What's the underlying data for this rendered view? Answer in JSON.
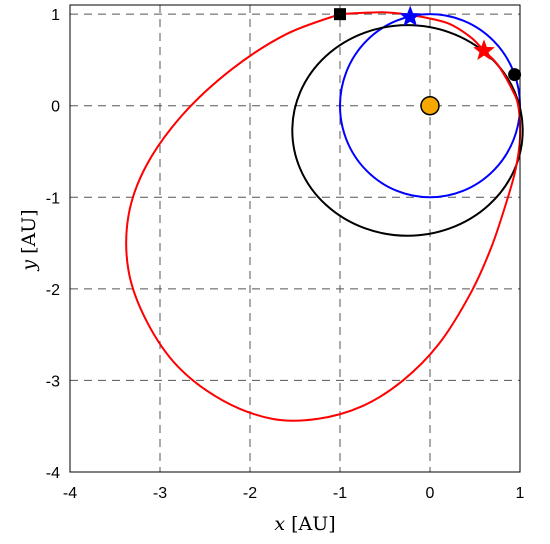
{
  "chart_data": {
    "type": "line",
    "title": "",
    "xlabel": {
      "var": "x",
      "unit": "[AU]"
    },
    "ylabel": {
      "var": "y",
      "unit": "[AU]"
    },
    "xlim": [
      -4,
      1.0
    ],
    "ylim": [
      -4,
      1.1
    ],
    "xticks": [
      "-4",
      "-3",
      "-2",
      "-1",
      "0",
      "1"
    ],
    "yticks": [
      "1",
      "0",
      "-1",
      "-2",
      "-3",
      "-4"
    ],
    "grid": "dashed",
    "series": [
      {
        "color": "#0000ff",
        "kind": "ellipse",
        "center": [
          0,
          0
        ],
        "rx": 1.0,
        "ry": 1.0,
        "marker": {
          "shape": "star",
          "x": -0.22,
          "y": 0.97
        }
      },
      {
        "color": "#000000",
        "kind": "ellipse",
        "center": [
          -0.25,
          -0.27
        ],
        "rx": 1.28,
        "ry": 1.15,
        "markers": [
          {
            "shape": "square",
            "x": -1.0,
            "y": 1.0
          },
          {
            "shape": "circle",
            "x": 0.94,
            "y": 0.34
          }
        ]
      },
      {
        "color": "#ff0000",
        "kind": "curve",
        "points": [
          [
            -1.0,
            1.0
          ],
          [
            -0.5,
            1.02
          ],
          [
            -0.15,
            0.98
          ],
          [
            0.2,
            0.9
          ],
          [
            0.45,
            0.75
          ],
          [
            0.6,
            0.6
          ],
          [
            0.75,
            0.45
          ],
          [
            0.9,
            0.2
          ],
          [
            0.98,
            0.0
          ],
          [
            1.0,
            -0.35
          ],
          [
            0.95,
            -0.7
          ],
          [
            0.85,
            -1.05
          ],
          [
            0.68,
            -1.55
          ],
          [
            0.45,
            -2.05
          ],
          [
            0.1,
            -2.6
          ],
          [
            -0.3,
            -3.0
          ],
          [
            -0.75,
            -3.28
          ],
          [
            -1.25,
            -3.42
          ],
          [
            -1.75,
            -3.42
          ],
          [
            -2.3,
            -3.22
          ],
          [
            -2.8,
            -2.85
          ],
          [
            -3.15,
            -2.35
          ],
          [
            -3.35,
            -1.8
          ],
          [
            -3.35,
            -1.2
          ],
          [
            -3.15,
            -0.65
          ],
          [
            -2.75,
            -0.1
          ],
          [
            -2.2,
            0.4
          ],
          [
            -1.6,
            0.78
          ],
          [
            -1.0,
            1.0
          ]
        ],
        "marker": {
          "shape": "star",
          "x": 0.6,
          "y": 0.6
        }
      }
    ],
    "sun": {
      "x": 0,
      "y": 0,
      "color": "#f7a800"
    }
  }
}
